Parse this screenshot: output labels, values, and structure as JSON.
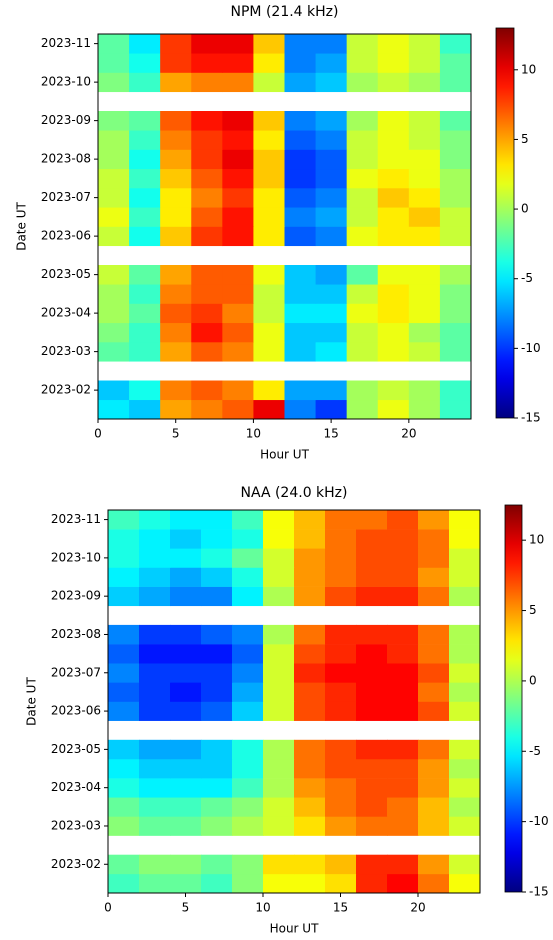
{
  "chart_data": [
    {
      "type": "heatmap",
      "title": "NPM (21.4 kHz)",
      "xlabel": "Hour UT",
      "ylabel": "Date UT",
      "colormap": "jet",
      "xlim": [
        0,
        24
      ],
      "xticks": [
        0,
        5,
        10,
        15,
        20
      ],
      "bins": [
        0,
        2,
        4,
        6,
        8,
        10,
        12,
        14,
        16,
        18,
        20,
        22,
        24
      ],
      "categories": [
        null,
        "2023-02",
        null,
        "2023-03",
        null,
        "2023-04",
        null,
        "2023-05",
        null,
        "2023-06",
        null,
        "2023-07",
        null,
        "2023-08",
        null,
        "2023-09",
        null,
        "2023-10",
        null,
        "2023-11"
      ],
      "clim": [
        -15,
        13
      ],
      "cticks": [
        -15,
        -10,
        -5,
        0,
        5,
        10
      ],
      "values": [
        [
          -5,
          -6,
          5,
          6,
          7,
          10,
          -8,
          -10,
          0,
          2,
          0,
          -3
        ],
        [
          -6,
          -4,
          6,
          7,
          6,
          3,
          -7,
          -7,
          0,
          1,
          0,
          -3
        ],
        [
          null,
          null,
          null,
          null,
          null,
          null,
          null,
          null,
          null,
          null,
          null,
          null
        ],
        [
          -2,
          -3,
          5,
          7,
          6,
          2,
          -6,
          -5,
          1,
          2,
          1,
          -2
        ],
        [
          -1,
          -3,
          6,
          9,
          7,
          2,
          -6,
          -6,
          1,
          2,
          0,
          -2
        ],
        [
          0,
          -2,
          7,
          8,
          6,
          1,
          -5,
          -5,
          2,
          3,
          2,
          -1
        ],
        [
          0,
          -3,
          6,
          7,
          7,
          1,
          -6,
          -6,
          1,
          3,
          2,
          -1
        ],
        [
          1,
          -2,
          5,
          7,
          7,
          2,
          -6,
          -7,
          -2,
          2,
          2,
          0
        ],
        [
          null,
          null,
          null,
          null,
          null,
          null,
          null,
          null,
          null,
          null,
          null,
          null
        ],
        [
          1,
          -4,
          4,
          8,
          9,
          3,
          -9,
          -8,
          2,
          3,
          3,
          1
        ],
        [
          2,
          -3,
          3,
          7,
          9,
          3,
          -8,
          -7,
          1,
          3,
          4,
          1
        ],
        [
          1,
          -4,
          3,
          6,
          8,
          3,
          -9,
          -8,
          1,
          4,
          3,
          0
        ],
        [
          1,
          -3,
          4,
          7,
          9,
          4,
          -10,
          -9,
          2,
          3,
          2,
          0
        ],
        [
          0,
          -4,
          5,
          8,
          10,
          4,
          -10,
          -9,
          1,
          2,
          2,
          -1
        ],
        [
          0,
          -3,
          6,
          8,
          9,
          3,
          -9,
          -8,
          1,
          2,
          1,
          -1
        ],
        [
          -1,
          -2,
          7,
          9,
          10,
          4,
          -8,
          -7,
          0,
          2,
          1,
          -2
        ],
        [
          null,
          null,
          null,
          null,
          null,
          null,
          null,
          null,
          null,
          null,
          null,
          null
        ],
        [
          -1,
          -3,
          5,
          6,
          6,
          1,
          -7,
          -6,
          0,
          1,
          0,
          -2
        ],
        [
          -2,
          -4,
          8,
          9,
          9,
          3,
          -8,
          -7,
          1,
          2,
          1,
          -2
        ],
        [
          -2,
          -5,
          8,
          10,
          10,
          4,
          -8,
          -8,
          1,
          2,
          1,
          -3
        ]
      ]
    },
    {
      "type": "heatmap",
      "title": "NAA (24.0 kHz)",
      "xlabel": "Hour UT",
      "ylabel": "Date UT",
      "colormap": "jet",
      "xlim": [
        0,
        24
      ],
      "xticks": [
        0,
        5,
        10,
        15,
        20
      ],
      "bins": [
        0,
        2,
        4,
        6,
        8,
        10,
        12,
        14,
        16,
        18,
        20,
        22,
        24
      ],
      "categories": [
        null,
        "2023-02",
        null,
        "2023-03",
        null,
        "2023-04",
        null,
        "2023-05",
        null,
        "2023-06",
        null,
        "2023-07",
        null,
        "2023-08",
        null,
        "2023-09",
        null,
        "2023-10",
        null,
        "2023-11"
      ],
      "clim": [
        -15,
        12.5
      ],
      "cticks": [
        -15,
        -10,
        -5,
        0,
        5,
        10
      ],
      "values": [
        [
          -3,
          -2,
          -2,
          -3,
          -1,
          2,
          2,
          3,
          8,
          9,
          6,
          2
        ],
        [
          -2,
          -1,
          -1,
          -2,
          -1,
          3,
          3,
          4,
          8,
          8,
          5,
          1
        ],
        [
          null,
          null,
          null,
          null,
          null,
          null,
          null,
          null,
          null,
          null,
          null,
          null
        ],
        [
          -1,
          -2,
          -2,
          -1,
          0,
          1,
          3,
          5,
          6,
          6,
          4,
          1
        ],
        [
          -2,
          -3,
          -3,
          -2,
          -1,
          1,
          4,
          6,
          7,
          6,
          4,
          0
        ],
        [
          -4,
          -5,
          -5,
          -5,
          -3,
          0,
          5,
          6,
          7,
          7,
          5,
          1
        ],
        [
          -5,
          -6,
          -6,
          -6,
          -4,
          0,
          6,
          7,
          7,
          7,
          5,
          0
        ],
        [
          -6,
          -7,
          -7,
          -6,
          -4,
          0,
          6,
          7,
          8,
          8,
          6,
          1
        ],
        [
          null,
          null,
          null,
          null,
          null,
          null,
          null,
          null,
          null,
          null,
          null,
          null
        ],
        [
          -8,
          -10,
          -10,
          -9,
          -6,
          1,
          7,
          8,
          9,
          9,
          7,
          1
        ],
        [
          -9,
          -10,
          -11,
          -10,
          -7,
          1,
          7,
          8,
          9,
          9,
          6,
          0
        ],
        [
          -8,
          -10,
          -10,
          -10,
          -8,
          1,
          8,
          9,
          9,
          9,
          7,
          1
        ],
        [
          -9,
          -11,
          -11,
          -11,
          -9,
          1,
          7,
          8,
          9,
          8,
          6,
          0
        ],
        [
          -8,
          -10,
          -10,
          -9,
          -8,
          0,
          6,
          8,
          8,
          8,
          6,
          0
        ],
        [
          null,
          null,
          null,
          null,
          null,
          null,
          null,
          null,
          null,
          null,
          null,
          null
        ],
        [
          -6,
          -7,
          -8,
          -8,
          -5,
          0,
          5,
          7,
          8,
          8,
          6,
          0
        ],
        [
          -5,
          -6,
          -7,
          -6,
          -4,
          1,
          5,
          6,
          7,
          7,
          5,
          1
        ],
        [
          -4,
          -5,
          -5,
          -4,
          -2,
          1,
          5,
          6,
          7,
          7,
          6,
          1
        ],
        [
          -4,
          -5,
          -6,
          -5,
          -4,
          2,
          4,
          6,
          7,
          7,
          6,
          2
        ],
        [
          -3,
          -4,
          -5,
          -5,
          -3,
          2,
          4,
          6,
          6,
          7,
          5,
          2
        ]
      ]
    }
  ]
}
